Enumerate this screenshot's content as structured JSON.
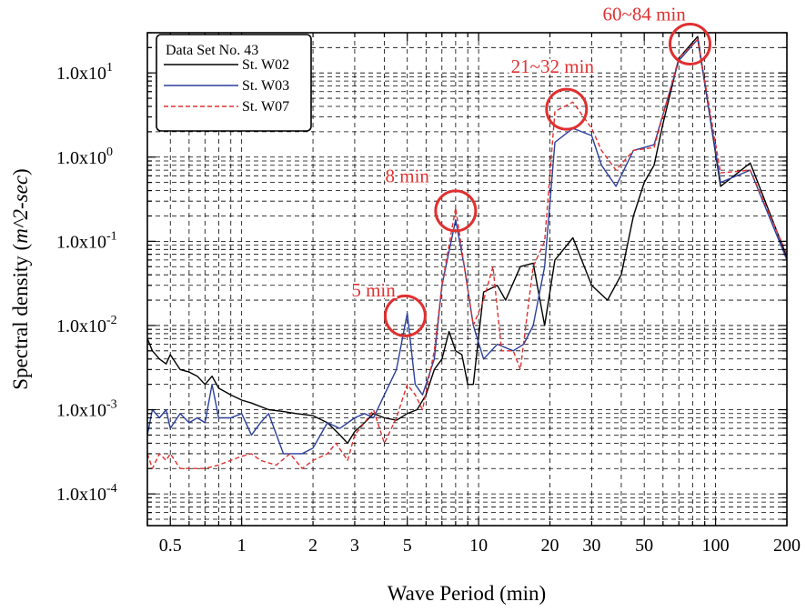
{
  "chart_data": {
    "type": "line",
    "xscale": "log",
    "yscale": "log",
    "xlabel": "Wave Period (min)",
    "ylabel_main": "Spectral density (",
    "ylabel_unit": "m^2-sec",
    "ylabel_close": ")",
    "xlim": [
      0.4,
      200
    ],
    "ylim": [
      4.2e-05,
      30
    ],
    "grid": true,
    "legend_position": "top-left",
    "legend_title": "Data Set No. 43",
    "x_ticks": [
      {
        "value": 0.5,
        "label": "0.5"
      },
      {
        "value": 1,
        "label": "1"
      },
      {
        "value": 2,
        "label": "2"
      },
      {
        "value": 3,
        "label": "3"
      },
      {
        "value": 5,
        "label": "5"
      },
      {
        "value": 10,
        "label": "10"
      },
      {
        "value": 20,
        "label": "20"
      },
      {
        "value": 30,
        "label": "30"
      },
      {
        "value": 50,
        "label": "50"
      },
      {
        "value": 100,
        "label": "100"
      },
      {
        "value": 200,
        "label": "200"
      }
    ],
    "y_ticks": [
      {
        "value": 0.0001,
        "label": "1.0x10",
        "exp": "-4"
      },
      {
        "value": 0.001,
        "label": "1.0x10",
        "exp": "-3"
      },
      {
        "value": 0.01,
        "label": "1.0x10",
        "exp": "-2"
      },
      {
        "value": 0.1,
        "label": "1.0x10",
        "exp": "-1"
      },
      {
        "value": 1,
        "label": "1.0x10",
        "exp": "0"
      },
      {
        "value": 10,
        "label": "1.0x10",
        "exp": "1"
      }
    ],
    "series": [
      {
        "name": "St. W02",
        "color": "#000000",
        "dash": "",
        "points": [
          [
            0.4,
            0.007
          ],
          [
            0.42,
            0.005
          ],
          [
            0.45,
            0.004
          ],
          [
            0.48,
            0.0035
          ],
          [
            0.5,
            0.0045
          ],
          [
            0.55,
            0.003
          ],
          [
            0.6,
            0.0028
          ],
          [
            0.65,
            0.0025
          ],
          [
            0.7,
            0.002
          ],
          [
            0.75,
            0.0025
          ],
          [
            0.8,
            0.0018
          ],
          [
            0.9,
            0.0015
          ],
          [
            1.0,
            0.0013
          ],
          [
            1.1,
            0.0012
          ],
          [
            1.3,
            0.001
          ],
          [
            1.5,
            0.00095
          ],
          [
            1.7,
            0.0009
          ],
          [
            2.0,
            0.00085
          ],
          [
            2.3,
            0.0007
          ],
          [
            2.6,
            0.0005
          ],
          [
            2.8,
            0.0004
          ],
          [
            3.0,
            0.00055
          ],
          [
            3.3,
            0.0007
          ],
          [
            3.6,
            0.0009
          ],
          [
            4.0,
            0.0008
          ],
          [
            4.5,
            0.00075
          ],
          [
            5.0,
            0.0009
          ],
          [
            5.5,
            0.001
          ],
          [
            6.0,
            0.0015
          ],
          [
            6.5,
            0.003
          ],
          [
            7.0,
            0.004
          ],
          [
            7.5,
            0.0085
          ],
          [
            8.0,
            0.005
          ],
          [
            8.5,
            0.0045
          ],
          [
            9.0,
            0.002
          ],
          [
            9.5,
            0.002
          ],
          [
            10.5,
            0.025
          ],
          [
            12.0,
            0.03
          ],
          [
            13.0,
            0.02
          ],
          [
            15.0,
            0.05
          ],
          [
            17.0,
            0.055
          ],
          [
            19.0,
            0.01
          ],
          [
            21.0,
            0.06
          ],
          [
            25.0,
            0.11
          ],
          [
            30.0,
            0.03
          ],
          [
            35.0,
            0.02
          ],
          [
            40.0,
            0.04
          ],
          [
            45.0,
            0.2
          ],
          [
            50.0,
            0.5
          ],
          [
            55.0,
            0.8
          ],
          [
            60.0,
            2.5
          ],
          [
            70.0,
            15
          ],
          [
            84.0,
            27
          ],
          [
            105.0,
            0.45
          ],
          [
            140.0,
            0.85
          ],
          [
            200.0,
            0.065
          ]
        ]
      },
      {
        "name": "St. W03",
        "color": "#2b3f9e",
        "dash": "",
        "points": [
          [
            0.4,
            0.0005
          ],
          [
            0.42,
            0.001
          ],
          [
            0.45,
            0.0008
          ],
          [
            0.48,
            0.001
          ],
          [
            0.5,
            0.0006
          ],
          [
            0.55,
            0.0009
          ],
          [
            0.6,
            0.0007
          ],
          [
            0.65,
            0.0008
          ],
          [
            0.7,
            0.0007
          ],
          [
            0.75,
            0.002
          ],
          [
            0.8,
            0.0008
          ],
          [
            0.9,
            0.0008
          ],
          [
            1.0,
            0.0009
          ],
          [
            1.1,
            0.0005
          ],
          [
            1.2,
            0.0007
          ],
          [
            1.3,
            0.0009
          ],
          [
            1.5,
            0.0003
          ],
          [
            1.8,
            0.0003
          ],
          [
            2.0,
            0.00035
          ],
          [
            2.3,
            0.0007
          ],
          [
            2.6,
            0.0006
          ],
          [
            3.0,
            0.0008
          ],
          [
            3.3,
            0.0009
          ],
          [
            3.6,
            0.0008
          ],
          [
            4.0,
            0.0015
          ],
          [
            4.5,
            0.003
          ],
          [
            5.0,
            0.014
          ],
          [
            5.4,
            0.002
          ],
          [
            5.8,
            0.0015
          ],
          [
            6.5,
            0.004
          ],
          [
            7.0,
            0.03
          ],
          [
            8.0,
            0.18
          ],
          [
            8.7,
            0.05
          ],
          [
            9.5,
            0.01
          ],
          [
            10.5,
            0.004
          ],
          [
            12.0,
            0.006
          ],
          [
            14.0,
            0.005
          ],
          [
            15.5,
            0.006
          ],
          [
            17.0,
            0.01
          ],
          [
            19.0,
            0.05
          ],
          [
            21.0,
            1.5
          ],
          [
            25.0,
            2.2
          ],
          [
            30.0,
            1.8
          ],
          [
            33.0,
            0.8
          ],
          [
            38.0,
            0.45
          ],
          [
            45.0,
            1.2
          ],
          [
            55.0,
            1.4
          ],
          [
            70.0,
            14
          ],
          [
            84.0,
            25
          ],
          [
            105.0,
            0.5
          ],
          [
            140.0,
            0.7
          ],
          [
            200.0,
            0.06
          ]
        ]
      },
      {
        "name": "St. W07",
        "color": "#e03030",
        "dash": "5,3",
        "points": [
          [
            0.4,
            0.0003
          ],
          [
            0.42,
            0.0002
          ],
          [
            0.45,
            0.0003
          ],
          [
            0.48,
            0.00025
          ],
          [
            0.5,
            0.0003
          ],
          [
            0.55,
            0.0002
          ],
          [
            0.6,
            0.0002
          ],
          [
            0.7,
            0.0002
          ],
          [
            0.8,
            0.00022
          ],
          [
            0.9,
            0.00025
          ],
          [
            1.0,
            0.00028
          ],
          [
            1.1,
            0.0003
          ],
          [
            1.2,
            0.00025
          ],
          [
            1.4,
            0.00022
          ],
          [
            1.6,
            0.0003
          ],
          [
            1.8,
            0.0002
          ],
          [
            2.0,
            0.00025
          ],
          [
            2.3,
            0.0003
          ],
          [
            2.5,
            0.0004
          ],
          [
            2.8,
            0.00025
          ],
          [
            3.0,
            0.0005
          ],
          [
            3.3,
            0.0007
          ],
          [
            3.6,
            0.001
          ],
          [
            4.0,
            0.0004
          ],
          [
            4.5,
            0.0008
          ],
          [
            5.0,
            0.002
          ],
          [
            5.4,
            0.0015
          ],
          [
            5.8,
            0.001
          ],
          [
            6.5,
            0.005
          ],
          [
            7.0,
            0.03
          ],
          [
            8.0,
            0.25
          ],
          [
            8.7,
            0.05
          ],
          [
            9.5,
            0.01
          ],
          [
            10.5,
            0.02
          ],
          [
            11.5,
            0.05
          ],
          [
            12.5,
            0.005
          ],
          [
            14.0,
            0.005
          ],
          [
            15.0,
            0.003
          ],
          [
            17.0,
            0.05
          ],
          [
            19.0,
            0.1
          ],
          [
            21.0,
            3.5
          ],
          [
            25.0,
            4.5
          ],
          [
            30.0,
            2.2
          ],
          [
            33.0,
            1.2
          ],
          [
            38.0,
            0.7
          ],
          [
            45.0,
            1.2
          ],
          [
            55.0,
            1.3
          ],
          [
            70.0,
            15
          ],
          [
            84.0,
            25
          ],
          [
            105.0,
            0.65
          ],
          [
            140.0,
            0.7
          ],
          [
            200.0,
            0.07
          ]
        ]
      }
    ],
    "annotations": [
      {
        "text": "5 min",
        "label_x": 3.6,
        "label_y": 0.022,
        "circle_x": 4.9,
        "circle_y": 0.013
      },
      {
        "text": "8 min",
        "label_x": 5.0,
        "label_y": 0.5,
        "circle_x": 8.0,
        "circle_y": 0.23
      },
      {
        "text": "21~32 min",
        "label_x": 20.5,
        "label_y": 10,
        "circle_x": 23.5,
        "circle_y": 3.7
      },
      {
        "text": "60~84 min",
        "label_x": 50,
        "label_y": 42,
        "circle_x": 78,
        "circle_y": 22
      }
    ]
  }
}
